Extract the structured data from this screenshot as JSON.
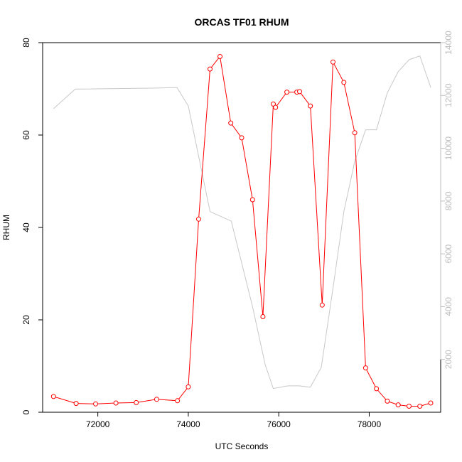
{
  "chart_data": {
    "type": "line",
    "title": "ORCAS TF01 RHUM",
    "xlabel": "UTC Seconds",
    "ylabel": "RHUM",
    "y2label": "",
    "xlim": [
      70780,
      79580
    ],
    "ylim": [
      0,
      80
    ],
    "y2lim": [
      0,
      14000
    ],
    "x_ticks": [
      72000,
      74000,
      76000,
      78000
    ],
    "y_ticks": [
      0,
      20,
      40,
      60,
      80
    ],
    "y2_ticks": [
      2000,
      4000,
      6000,
      8000,
      10000,
      12000,
      14000
    ],
    "grid": false,
    "legend": "none",
    "colors": {
      "primary": "#ff0000",
      "secondary": "#c8c8c8",
      "axis": "#000000",
      "axis2": "#bebebe"
    },
    "series": [
      {
        "axis": "left",
        "style": "line-markers",
        "x": [
          71020,
          71520,
          71950,
          72400,
          72850,
          73300,
          73760,
          74000,
          74230,
          74480,
          74700,
          74940,
          75180,
          75420,
          75650,
          75880,
          75930,
          76180,
          76400,
          76460,
          76700,
          76960,
          77200,
          77440,
          77680,
          77920,
          78160,
          78400,
          78640,
          78880,
          79120,
          79360
        ],
        "y": [
          3.4,
          1.9,
          1.8,
          2.0,
          2.1,
          2.8,
          2.5,
          5.5,
          41.8,
          74.3,
          77.0,
          62.6,
          59.4,
          46.0,
          20.7,
          66.7,
          66.0,
          69.3,
          69.3,
          69.4,
          66.3,
          23.2,
          75.8,
          71.4,
          60.5,
          9.6,
          5.1,
          2.4,
          1.6,
          1.3,
          1.3,
          2.0
        ]
      },
      {
        "axis": "right",
        "style": "line",
        "x": [
          71020,
          71500,
          73300,
          73750,
          74000,
          74480,
          74950,
          75420,
          75700,
          75880,
          76200,
          76450,
          76700,
          76940,
          77200,
          77440,
          77680,
          77920,
          78160,
          78400,
          78640,
          78880,
          79120,
          79360
        ],
        "y": [
          11500,
          12240,
          12280,
          12300,
          11600,
          7600,
          7240,
          4000,
          1800,
          900,
          1000,
          1000,
          950,
          1700,
          4700,
          7600,
          9500,
          10700,
          10700,
          12100,
          12900,
          13350,
          13500,
          12300
        ]
      }
    ]
  }
}
